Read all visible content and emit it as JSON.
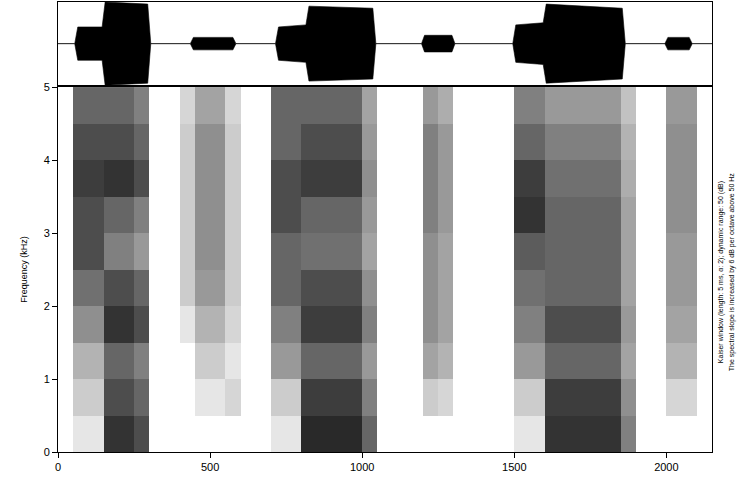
{
  "chart_data": [
    {
      "type": "area",
      "color": "#000000",
      "x": [
        0,
        55,
        65,
        145,
        155,
        295,
        305,
        435,
        445,
        575,
        585,
        715,
        725,
        815,
        825,
        1035,
        1045,
        1195,
        1205,
        1295,
        1305,
        1495,
        1505,
        1595,
        1605,
        1855,
        1865,
        1995,
        2005,
        2075,
        2085,
        2150
      ],
      "upper": [
        0,
        0,
        0.4,
        0.4,
        1,
        0.95,
        0,
        0,
        0.15,
        0.15,
        0,
        0,
        0.4,
        0.45,
        0.9,
        0.85,
        0,
        0,
        0.2,
        0.2,
        0,
        0,
        0.45,
        0.5,
        0.95,
        0.85,
        0,
        0,
        0.15,
        0.15,
        0,
        0
      ],
      "lower": [
        0,
        0,
        -0.4,
        -0.4,
        -1,
        -0.95,
        0,
        0,
        -0.15,
        -0.15,
        0,
        0,
        -0.4,
        -0.45,
        -0.9,
        -0.85,
        0,
        0,
        -0.2,
        -0.2,
        0,
        0,
        -0.45,
        -0.5,
        -0.95,
        -0.85,
        0,
        0,
        -0.15,
        -0.15,
        0,
        0
      ],
      "xlim": [
        0,
        2150
      ],
      "ylim": [
        -1,
        1
      ],
      "tick_labels": false
    },
    {
      "type": "heatmap",
      "color": "#000000",
      "y_label": "Frequency (kHz)",
      "annotations": [
        "Kaiser window (length: 5 ms, α: 2); dynamic range: 50 (dB)",
        "The spectral slope is increased by 6 dB per octave above 50 Hz"
      ],
      "xlim": [
        0,
        2150
      ],
      "xticks": [
        0,
        500,
        1000,
        1500,
        2000
      ],
      "ylim": [
        0,
        5
      ],
      "yticks": [
        0,
        1,
        2,
        3,
        4,
        5
      ],
      "zlim": [
        0,
        50
      ],
      "x_bins": [
        0,
        50,
        100,
        150,
        200,
        250,
        300,
        350,
        400,
        450,
        500,
        550,
        600,
        650,
        700,
        750,
        800,
        850,
        900,
        950,
        1000,
        1050,
        1100,
        1150,
        1200,
        1250,
        1300,
        1350,
        1400,
        1450,
        1500,
        1550,
        1600,
        1650,
        1700,
        1750,
        1800,
        1850,
        1900,
        1950,
        2000,
        2050,
        2100,
        2150
      ],
      "y_bins": [
        0,
        0.5,
        1,
        1.5,
        2,
        2.5,
        3,
        3.5,
        4,
        4.5,
        5
      ],
      "z": [
        [
          0,
          5,
          5,
          40,
          40,
          35,
          0,
          0,
          0,
          0,
          0,
          0,
          0,
          0,
          5,
          5,
          42,
          42,
          42,
          42,
          30,
          0,
          0,
          0,
          0,
          0,
          0,
          0,
          0,
          0,
          5,
          5,
          40,
          40,
          40,
          40,
          40,
          25,
          0,
          0,
          0,
          0,
          0
        ],
        [
          0,
          10,
          10,
          35,
          35,
          30,
          0,
          0,
          0,
          5,
          5,
          8,
          0,
          0,
          10,
          10,
          38,
          38,
          38,
          38,
          25,
          0,
          0,
          0,
          10,
          8,
          0,
          0,
          0,
          0,
          10,
          10,
          38,
          38,
          38,
          38,
          38,
          22,
          0,
          0,
          8,
          8,
          0
        ],
        [
          0,
          15,
          15,
          30,
          30,
          25,
          0,
          0,
          0,
          10,
          10,
          5,
          0,
          0,
          20,
          20,
          30,
          30,
          30,
          30,
          20,
          0,
          0,
          0,
          18,
          15,
          0,
          0,
          0,
          0,
          20,
          20,
          30,
          30,
          30,
          30,
          30,
          18,
          0,
          0,
          15,
          15,
          0
        ],
        [
          0,
          22,
          22,
          40,
          40,
          35,
          0,
          0,
          5,
          15,
          15,
          8,
          0,
          0,
          25,
          25,
          38,
          38,
          38,
          38,
          25,
          0,
          0,
          0,
          22,
          18,
          0,
          0,
          0,
          0,
          25,
          25,
          35,
          35,
          35,
          35,
          35,
          20,
          0,
          0,
          18,
          18,
          0
        ],
        [
          0,
          28,
          28,
          35,
          35,
          30,
          0,
          0,
          10,
          20,
          20,
          10,
          0,
          0,
          30,
          30,
          35,
          35,
          35,
          35,
          22,
          0,
          0,
          0,
          22,
          18,
          0,
          0,
          0,
          0,
          28,
          28,
          30,
          30,
          30,
          30,
          30,
          18,
          0,
          0,
          20,
          20,
          0
        ],
        [
          0,
          35,
          35,
          25,
          25,
          20,
          0,
          0,
          10,
          22,
          22,
          10,
          0,
          0,
          30,
          30,
          28,
          28,
          28,
          28,
          18,
          0,
          0,
          0,
          22,
          18,
          0,
          0,
          0,
          0,
          32,
          32,
          30,
          30,
          30,
          30,
          30,
          18,
          0,
          0,
          20,
          20,
          0
        ],
        [
          0,
          35,
          35,
          30,
          30,
          25,
          0,
          0,
          10,
          22,
          22,
          10,
          0,
          0,
          35,
          35,
          30,
          30,
          30,
          30,
          20,
          0,
          0,
          0,
          25,
          20,
          0,
          0,
          0,
          0,
          40,
          40,
          30,
          30,
          30,
          30,
          30,
          18,
          0,
          0,
          22,
          22,
          0
        ],
        [
          0,
          38,
          38,
          40,
          40,
          35,
          0,
          0,
          10,
          22,
          22,
          10,
          0,
          0,
          35,
          35,
          38,
          38,
          38,
          38,
          22,
          0,
          0,
          0,
          25,
          20,
          0,
          0,
          0,
          0,
          38,
          38,
          28,
          28,
          28,
          28,
          28,
          16,
          0,
          0,
          22,
          22,
          0
        ],
        [
          0,
          35,
          35,
          35,
          35,
          30,
          0,
          0,
          10,
          22,
          22,
          10,
          0,
          0,
          30,
          30,
          35,
          35,
          35,
          35,
          20,
          0,
          0,
          0,
          25,
          20,
          0,
          0,
          0,
          0,
          30,
          30,
          25,
          25,
          25,
          25,
          25,
          15,
          0,
          0,
          22,
          22,
          0
        ],
        [
          0,
          30,
          30,
          30,
          30,
          25,
          0,
          0,
          8,
          18,
          18,
          8,
          0,
          0,
          30,
          30,
          30,
          30,
          30,
          30,
          18,
          0,
          0,
          0,
          20,
          16,
          0,
          0,
          0,
          0,
          25,
          25,
          20,
          20,
          20,
          20,
          20,
          12,
          0,
          0,
          20,
          20,
          0
        ]
      ]
    }
  ]
}
